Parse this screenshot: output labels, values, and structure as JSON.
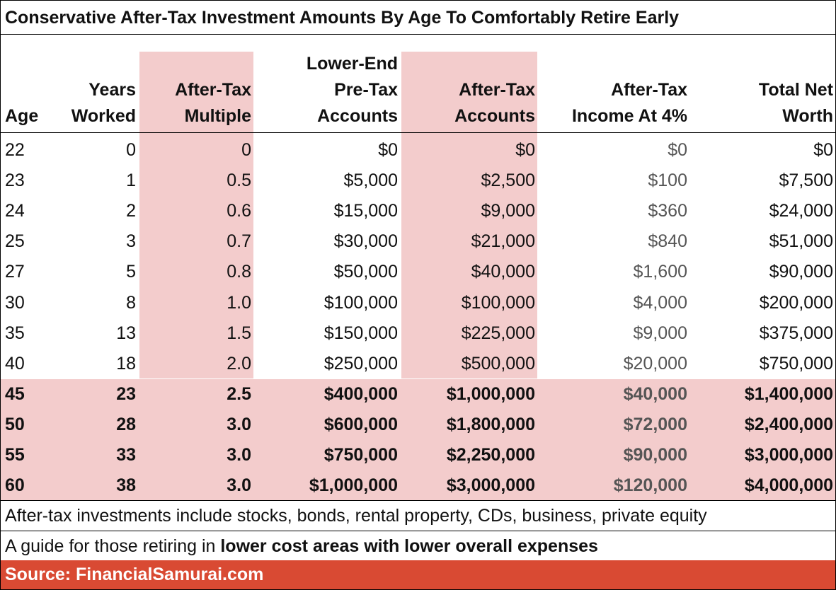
{
  "title": "Conservative After-Tax Investment Amounts By Age To Comfortably Retire Early",
  "colors": {
    "shade": "#f3cccc",
    "source_bar": "#d94a33",
    "income_text": "#555555"
  },
  "columns": [
    "Age",
    "Years\nWorked",
    "After-Tax\nMultiple",
    "Lower-End\nPre-Tax\nAccounts",
    "After-Tax\nAccounts",
    "After-Tax\nIncome At 4%",
    "Total Net\nWorth"
  ],
  "rows": [
    [
      "22",
      "0",
      "0",
      "$0",
      "$0",
      "$0",
      "$0"
    ],
    [
      "23",
      "1",
      "0.5",
      "$5,000",
      "$2,500",
      "$100",
      "$7,500"
    ],
    [
      "24",
      "2",
      "0.6",
      "$15,000",
      "$9,000",
      "$360",
      "$24,000"
    ],
    [
      "25",
      "3",
      "0.7",
      "$30,000",
      "$21,000",
      "$840",
      "$51,000"
    ],
    [
      "27",
      "5",
      "0.8",
      "$50,000",
      "$40,000",
      "$1,600",
      "$90,000"
    ],
    [
      "30",
      "8",
      "1.0",
      "$100,000",
      "$100,000",
      "$4,000",
      "$200,000"
    ],
    [
      "35",
      "13",
      "1.5",
      "$150,000",
      "$225,000",
      "$9,000",
      "$375,000"
    ],
    [
      "40",
      "18",
      "2.0",
      "$250,000",
      "$500,000",
      "$20,000",
      "$750,000"
    ],
    [
      "45",
      "23",
      "2.5",
      "$400,000",
      "$1,000,000",
      "$40,000",
      "$1,400,000"
    ],
    [
      "50",
      "28",
      "3.0",
      "$600,000",
      "$1,800,000",
      "$72,000",
      "$2,400,000"
    ],
    [
      "55",
      "33",
      "3.0",
      "$750,000",
      "$2,250,000",
      "$90,000",
      "$3,000,000"
    ],
    [
      "60",
      "38",
      "3.0",
      "$1,000,000",
      "$3,000,000",
      "$120,000",
      "$4,000,000"
    ]
  ],
  "highlight_from_age": "45",
  "footnotes": {
    "line1": "After-tax investments include stocks, bonds, rental property, CDs, business, private equity",
    "line2_prefix": "A guide for those retiring in ",
    "line2_bold": "lower cost areas with lower overall expenses"
  },
  "source": "Source: FinancialSamurai.com"
}
